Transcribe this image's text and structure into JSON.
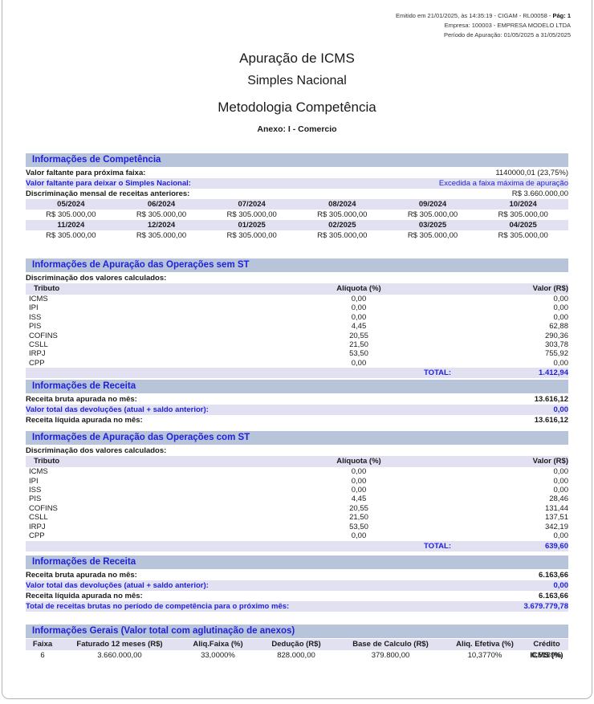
{
  "colors": {
    "accent_blue": "#2020df",
    "section_bar_bg": "#b8c4da",
    "alt_row_bg": "#e1e1f1"
  },
  "header": {
    "emitted_prefix": "Emitido em 21/01/2025, às 14:35:19 - CIGAM - RL00058 - ",
    "page_label": "Pág: 1",
    "company": "Empresa: 100003 - EMPRESA MODELO LTDA",
    "period": "Período de Apuração: 01/05/2025 a 31/05/2025"
  },
  "titles": {
    "main": "Apuração de ICMS",
    "regime": "Simples Nacional",
    "methodology": "Metodologia Competência",
    "annex": "Anexo: I - Comercio"
  },
  "competencia": {
    "title": "Informações de Competência",
    "rows": [
      {
        "label": "Valor faltante para próxima faixa:",
        "value": "1140000,01 (23,75%)"
      },
      {
        "label": "Valor faltante para deixar o Simples Nacional:",
        "value": "Excedida a faixa máxima de apuração"
      },
      {
        "label": "Discriminação mensal de receitas anteriores:",
        "value": "R$ 3.660.000,00"
      }
    ],
    "months1": [
      {
        "label": "05/2024",
        "value": "R$ 305.000,00"
      },
      {
        "label": "06/2024",
        "value": "R$ 305.000,00"
      },
      {
        "label": "07/2024",
        "value": "R$ 305.000,00"
      },
      {
        "label": "08/2024",
        "value": "R$ 305.000,00"
      },
      {
        "label": "09/2024",
        "value": "R$ 305.000,00"
      },
      {
        "label": "10/2024",
        "value": "R$ 305.000,00"
      }
    ],
    "months2": [
      {
        "label": "11/2024",
        "value": "R$ 305.000,00"
      },
      {
        "label": "12/2024",
        "value": "R$ 305.000,00"
      },
      {
        "label": "01/2025",
        "value": "R$ 305.000,00"
      },
      {
        "label": "02/2025",
        "value": "R$ 305.000,00"
      },
      {
        "label": "03/2025",
        "value": "R$ 305.000,00"
      },
      {
        "label": "04/2025",
        "value": "R$ 305.000,00"
      }
    ]
  },
  "sem_st": {
    "title": "Informações de Apuração das Operações sem ST",
    "subtitle": "Discriminação dos valores calculados:",
    "columns": {
      "tributo": "Tributo",
      "aliquota": "Alíquota (%)",
      "valor": "Valor (R$)"
    },
    "rows": [
      {
        "tributo": "ICMS",
        "aliquota": "0,00",
        "valor": "0,00"
      },
      {
        "tributo": "IPI",
        "aliquota": "0,00",
        "valor": "0,00"
      },
      {
        "tributo": "ISS",
        "aliquota": "0,00",
        "valor": "0,00"
      },
      {
        "tributo": "PIS",
        "aliquota": "4,45",
        "valor": "62,88"
      },
      {
        "tributo": "COFINS",
        "aliquota": "20,55",
        "valor": "290,36"
      },
      {
        "tributo": "CSLL",
        "aliquota": "21,50",
        "valor": "303,78"
      },
      {
        "tributo": "IRPJ",
        "aliquota": "53,50",
        "valor": "755,92"
      },
      {
        "tributo": "CPP",
        "aliquota": "0,00",
        "valor": "0,00"
      }
    ],
    "total_label": "TOTAL:",
    "total_value": "1.412,94"
  },
  "receita1": {
    "title": "Informações de Receita",
    "bruta": {
      "label": "Receita bruta apurada no mês:",
      "value": "13.616,12"
    },
    "devolucoes": {
      "label": "Valor total das devoluções (atual + saldo anterior):",
      "value": "0,00"
    },
    "liquida": {
      "label": "Receita líquida apurada no mês:",
      "value": "13.616,12"
    }
  },
  "com_st": {
    "title": "Informações de Apuração das Operações com ST",
    "subtitle": "Discriminação dos valores calculados:",
    "columns": {
      "tributo": "Tributo",
      "aliquota": "Alíquota (%)",
      "valor": "Valor (R$)"
    },
    "rows": [
      {
        "tributo": "ICMS",
        "aliquota": "0,00",
        "valor": "0,00"
      },
      {
        "tributo": "IPI",
        "aliquota": "0,00",
        "valor": "0,00"
      },
      {
        "tributo": "ISS",
        "aliquota": "0,00",
        "valor": "0,00"
      },
      {
        "tributo": "PIS",
        "aliquota": "4,45",
        "valor": "28,46"
      },
      {
        "tributo": "COFINS",
        "aliquota": "20,55",
        "valor": "131,44"
      },
      {
        "tributo": "CSLL",
        "aliquota": "21,50",
        "valor": "137,51"
      },
      {
        "tributo": "IRPJ",
        "aliquota": "53,50",
        "valor": "342,19"
      },
      {
        "tributo": "CPP",
        "aliquota": "0,00",
        "valor": "0,00"
      }
    ],
    "total_label": "TOTAL:",
    "total_value": "639,60"
  },
  "receita2": {
    "title": "Informações de Receita",
    "bruta": {
      "label": "Receita bruta apurada no mês:",
      "value": "6.163,66"
    },
    "devolucoes": {
      "label": "Valor total das devoluções (atual + saldo anterior):",
      "value": "0,00"
    },
    "liquida": {
      "label": "Receita líquida apurada no mês:",
      "value": "6.163,66"
    },
    "proximo": {
      "label": "Total de receitas brutas no período de competência para o próximo mês:",
      "value": "3.679.779,78"
    }
  },
  "gerais": {
    "title": "Informações Gerais (Valor total com aglutinação de anexos)",
    "headers": [
      "Faixa",
      "Faturado 12 meses (R$)",
      "Aliq.Faixa (%)",
      "Dedução (R$)",
      "Base de Calculo (R$)",
      "Aliq. Efetiva (%)",
      "Crédito ICMS (%)"
    ],
    "values": [
      "6",
      "3.660.000,00",
      "33,0000%",
      "828.000,00",
      "379.800,00",
      "10,3770%",
      "0,5189%"
    ]
  }
}
